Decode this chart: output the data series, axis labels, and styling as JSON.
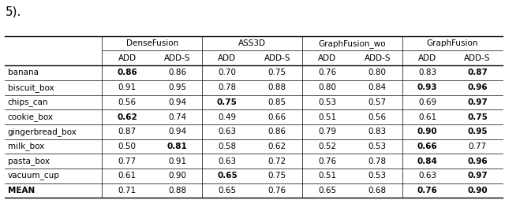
{
  "title_text": "5).",
  "col_groups": [
    {
      "label": "DenseFusion"
    },
    {
      "label": "ASS3D"
    },
    {
      "label": "GraphFusion_wo"
    },
    {
      "label": "GraphFusion"
    }
  ],
  "rows": [
    {
      "name": "banana",
      "values": [
        0.86,
        0.86,
        0.7,
        0.75,
        0.76,
        0.8,
        0.83,
        0.87
      ],
      "bold": [
        true,
        false,
        false,
        false,
        false,
        false,
        false,
        true
      ]
    },
    {
      "name": "biscuit_box",
      "values": [
        0.91,
        0.95,
        0.78,
        0.88,
        0.8,
        0.84,
        0.93,
        0.96
      ],
      "bold": [
        false,
        false,
        false,
        false,
        false,
        false,
        true,
        true
      ]
    },
    {
      "name": "chips_can",
      "values": [
        0.56,
        0.94,
        0.75,
        0.85,
        0.53,
        0.57,
        0.69,
        0.97
      ],
      "bold": [
        false,
        false,
        true,
        false,
        false,
        false,
        false,
        true
      ]
    },
    {
      "name": "cookie_box",
      "values": [
        0.62,
        0.74,
        0.49,
        0.66,
        0.51,
        0.56,
        0.61,
        0.75
      ],
      "bold": [
        true,
        false,
        false,
        false,
        false,
        false,
        false,
        true
      ]
    },
    {
      "name": "gingerbread_box",
      "values": [
        0.87,
        0.94,
        0.63,
        0.86,
        0.79,
        0.83,
        0.9,
        0.95
      ],
      "bold": [
        false,
        false,
        false,
        false,
        false,
        false,
        true,
        true
      ]
    },
    {
      "name": "milk_box",
      "values": [
        0.5,
        0.81,
        0.58,
        0.62,
        0.52,
        0.53,
        0.66,
        0.77
      ],
      "bold": [
        false,
        true,
        false,
        false,
        false,
        false,
        true,
        false
      ]
    },
    {
      "name": "pasta_box",
      "values": [
        0.77,
        0.91,
        0.63,
        0.72,
        0.76,
        0.78,
        0.84,
        0.96
      ],
      "bold": [
        false,
        false,
        false,
        false,
        false,
        false,
        true,
        true
      ]
    },
    {
      "name": "vacuum_cup",
      "values": [
        0.61,
        0.9,
        0.65,
        0.75,
        0.51,
        0.53,
        0.63,
        0.97
      ],
      "bold": [
        false,
        false,
        true,
        false,
        false,
        false,
        false,
        true
      ]
    },
    {
      "name": "MEAN",
      "values": [
        0.71,
        0.88,
        0.65,
        0.76,
        0.65,
        0.68,
        0.76,
        0.9
      ],
      "bold": [
        false,
        false,
        false,
        false,
        false,
        false,
        true,
        true
      ]
    }
  ],
  "figsize": [
    6.4,
    2.54
  ],
  "dpi": 100,
  "fontsize": 7.5,
  "title_fontsize": 11
}
